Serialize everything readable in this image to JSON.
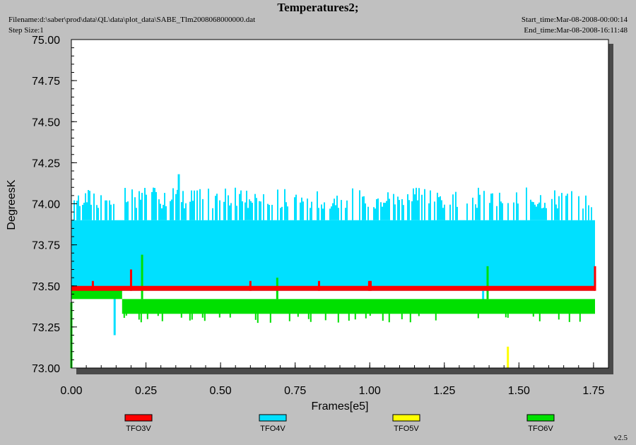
{
  "header": {
    "title": "Temperatures2;",
    "filename": "Filename:d:\\saber\\prod\\data\\QL\\data\\plot_data\\SABE_Tlm2008068000000.dat",
    "step_size": "Step Size:1",
    "start_time": "Start_time:Mar-08-2008-00:00:14",
    "end_time": "End_time:Mar-08-2008-16:11:48"
  },
  "version": "v2.5",
  "chart_data": {
    "type": "line",
    "xlabel": "Frames[e5]",
    "ylabel": "DegreesK",
    "xlim": [
      0.0,
      1.8
    ],
    "ylim": [
      73.0,
      75.0
    ],
    "x_ticks": [
      "0.00",
      "0.25",
      "0.50",
      "0.75",
      "1.00",
      "1.25",
      "1.50",
      "1.75"
    ],
    "y_ticks": [
      "73.00",
      "73.25",
      "73.50",
      "73.75",
      "74.00",
      "74.25",
      "74.50",
      "74.75",
      "75.00"
    ],
    "grid": false,
    "legend_position": "bottom",
    "series": [
      {
        "name": "TFO3V",
        "color": "#ff0000",
        "bands": [
          {
            "x0": 0.0,
            "x1": 1.755,
            "y0": 73.47,
            "y1": 73.5
          }
        ],
        "spikes": [
          {
            "x": 0.072,
            "y0": 73.47,
            "y1": 73.53
          },
          {
            "x": 0.2,
            "y0": 73.47,
            "y1": 73.6
          },
          {
            "x": 0.6,
            "y0": 73.47,
            "y1": 73.53
          },
          {
            "x": 0.83,
            "y0": 73.47,
            "y1": 73.53
          },
          {
            "x": 0.998,
            "y0": 73.47,
            "y1": 73.53
          },
          {
            "x": 1.003,
            "y0": 73.47,
            "y1": 73.53
          },
          {
            "x": 1.755,
            "y0": 73.47,
            "y1": 73.62
          }
        ]
      },
      {
        "name": "TFO4V",
        "color": "#00e0ff",
        "bands": [
          {
            "x0": 0.0,
            "x1": 1.755,
            "y0": 73.47,
            "y1": 73.9
          },
          {
            "x0": 0.0,
            "x1": 1.755,
            "y0": 73.9,
            "y1": 74.1
          }
        ],
        "spikes": [
          {
            "x": 0.145,
            "y0": 73.2,
            "y1": 73.47
          },
          {
            "x": 0.36,
            "y0": 73.9,
            "y1": 74.18
          },
          {
            "x": 1.38,
            "y0": 73.37,
            "y1": 73.47
          }
        ]
      },
      {
        "name": "TFO5V",
        "color": "#ffff00",
        "bands": [],
        "spikes": [
          {
            "x": 1.463,
            "y0": 73.0,
            "y1": 73.13
          }
        ]
      },
      {
        "name": "TFO6V",
        "color": "#00e000",
        "bands": [
          {
            "x0": 0.0,
            "x1": 0.17,
            "y0": 73.42,
            "y1": 73.49
          },
          {
            "x0": 0.17,
            "x1": 1.755,
            "y0": 73.33,
            "y1": 73.42
          }
        ],
        "spikes": [
          {
            "x": 0.237,
            "y0": 73.42,
            "y1": 73.69
          },
          {
            "x": 0.69,
            "y0": 73.42,
            "y1": 73.55
          },
          {
            "x": 1.395,
            "y0": 73.42,
            "y1": 73.62
          },
          {
            "x": 0.0,
            "y0": 73.0,
            "y1": 73.4
          }
        ]
      }
    ]
  }
}
